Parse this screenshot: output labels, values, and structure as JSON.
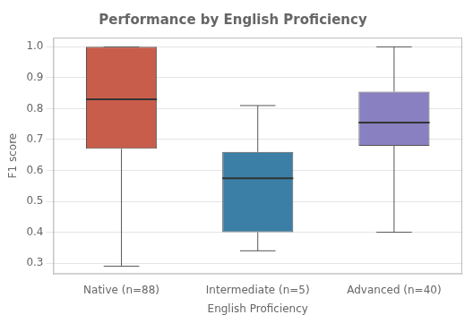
{
  "chart_data": {
    "type": "box",
    "title": "Performance by English Proficiency",
    "xlabel": "English Proficiency",
    "ylabel": "F1 score",
    "categories": [
      "Native (n=88)",
      "Intermediate (n=5)",
      "Advanced (n=40)"
    ],
    "values": [
      {
        "min": 0.29,
        "q1": 0.67,
        "median": 0.83,
        "q3": 1.0,
        "max": 1.0
      },
      {
        "min": 0.34,
        "q1": 0.4,
        "median": 0.575,
        "q3": 0.66,
        "max": 0.81
      },
      {
        "min": 0.4,
        "q1": 0.68,
        "median": 0.755,
        "q3": 0.855,
        "max": 1.0
      }
    ],
    "colors": [
      "#c75d4a",
      "#3b7fa6",
      "#8880c0"
    ],
    "ylim": [
      0.265,
      1.03
    ],
    "yticks": [
      0.3,
      0.4,
      0.5,
      0.6,
      0.7,
      0.8,
      0.9,
      {
        "value": 1.0,
        "label": "1.0"
      }
    ],
    "grid": true
  }
}
